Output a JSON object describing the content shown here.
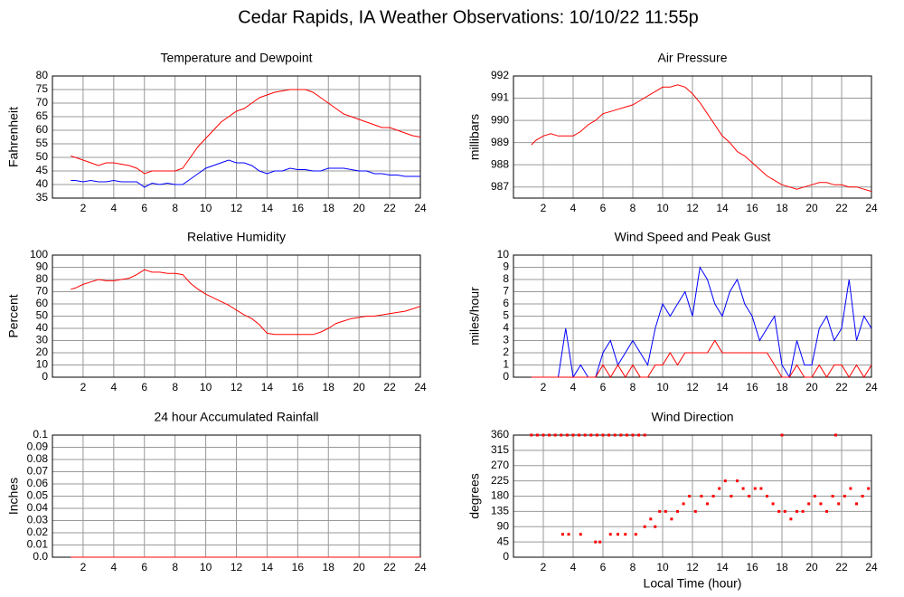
{
  "title": "Cedar Rapids, IA Weather Observations: 10/10/22 11:55p",
  "chart_data": [
    {
      "type": "line",
      "title": "Temperature and Dewpoint",
      "ylabel": "Fahrenheit",
      "x": [
        1.2,
        1.5,
        2,
        2.5,
        3,
        3.5,
        4,
        4.5,
        5,
        5.5,
        6,
        6.5,
        7,
        7.5,
        8,
        8.5,
        9,
        9.5,
        10,
        10.5,
        11,
        11.5,
        12,
        12.5,
        13,
        13.5,
        14,
        14.5,
        15,
        15.5,
        16,
        16.5,
        17,
        17.5,
        18,
        18.5,
        19,
        19.5,
        20,
        20.5,
        21,
        21.5,
        22,
        22.5,
        23,
        23.5,
        24
      ],
      "series": [
        {
          "color": "#ff0000",
          "values": [
            50.5,
            50,
            49,
            48,
            47,
            48,
            48,
            47.5,
            47,
            46,
            44,
            45,
            45,
            45,
            45,
            46,
            50,
            54,
            57,
            60,
            63,
            65,
            67,
            68,
            70,
            72,
            73,
            74,
            74.5,
            75,
            75,
            75,
            74,
            72,
            70,
            68,
            66,
            65,
            64,
            63,
            62,
            61,
            61,
            60,
            59,
            58,
            57.5
          ]
        },
        {
          "color": "#0000ff",
          "values": [
            41.5,
            41.5,
            41,
            41.5,
            41,
            41,
            41.5,
            41,
            41,
            41,
            39,
            40.5,
            40,
            40.5,
            40,
            40,
            42,
            44,
            46,
            47,
            48,
            49,
            48,
            48,
            47,
            45,
            44,
            45,
            45,
            46,
            45.5,
            45.5,
            45,
            45,
            46,
            46,
            46,
            45.5,
            45,
            45,
            44,
            44,
            43.5,
            43.5,
            43,
            43,
            43
          ]
        }
      ],
      "xlim": [
        0,
        24
      ],
      "xticks": [
        2,
        4,
        6,
        8,
        10,
        12,
        14,
        16,
        18,
        20,
        22,
        24
      ],
      "ylim": [
        35,
        80
      ],
      "yticks": [
        35,
        40,
        45,
        50,
        55,
        60,
        65,
        70,
        75,
        80
      ],
      "grid": true
    },
    {
      "type": "line",
      "title": "Air Pressure",
      "ylabel": "millibars",
      "x": [
        1.2,
        1.5,
        2,
        2.5,
        3,
        3.5,
        4,
        4.5,
        5,
        5.5,
        6,
        6.5,
        7,
        7.5,
        8,
        8.5,
        9,
        9.5,
        10,
        10.5,
        11,
        11.5,
        12,
        12.5,
        13,
        13.5,
        14,
        14.5,
        15,
        15.5,
        16,
        16.5,
        17,
        17.5,
        18,
        18.5,
        19,
        19.5,
        20,
        20.5,
        21,
        21.5,
        22,
        22.5,
        23,
        23.5,
        24
      ],
      "series": [
        {
          "color": "#ff0000",
          "values": [
            988.9,
            989.1,
            989.3,
            989.4,
            989.3,
            989.3,
            989.3,
            989.5,
            989.8,
            990.0,
            990.3,
            990.4,
            990.5,
            990.6,
            990.7,
            990.9,
            991.1,
            991.3,
            991.5,
            991.5,
            991.6,
            991.5,
            991.2,
            990.8,
            990.3,
            989.8,
            989.3,
            989.0,
            988.6,
            988.4,
            988.1,
            987.8,
            987.5,
            987.3,
            987.1,
            987.0,
            986.9,
            987.0,
            987.1,
            987.2,
            987.2,
            987.1,
            987.1,
            987.0,
            987.0,
            986.9,
            986.8
          ]
        }
      ],
      "xlim": [
        0,
        24
      ],
      "xticks": [
        2,
        4,
        6,
        8,
        10,
        12,
        14,
        16,
        18,
        20,
        22,
        24
      ],
      "ylim": [
        986.5,
        992
      ],
      "yticks": [
        987,
        988,
        989,
        990,
        991,
        992
      ],
      "grid": true
    },
    {
      "type": "line",
      "title": "Relative Humidity",
      "ylabel": "Percent",
      "x": [
        1.2,
        1.5,
        2,
        2.5,
        3,
        3.5,
        4,
        4.5,
        5,
        5.5,
        6,
        6.5,
        7,
        7.5,
        8,
        8.5,
        9,
        9.5,
        10,
        10.5,
        11,
        11.5,
        12,
        12.5,
        13,
        13.5,
        14,
        14.5,
        15,
        15.5,
        16,
        16.5,
        17,
        17.5,
        18,
        18.5,
        19,
        19.5,
        20,
        20.5,
        21,
        21.5,
        22,
        22.5,
        23,
        23.5,
        24
      ],
      "series": [
        {
          "color": "#ff0000",
          "values": [
            72,
            73,
            76,
            78,
            80,
            79,
            79,
            80,
            81,
            84,
            88,
            86,
            86,
            85,
            85,
            84,
            77,
            72,
            68,
            65,
            62,
            59,
            55,
            51,
            48,
            43,
            36,
            35,
            35,
            35,
            35,
            35,
            35,
            37,
            40,
            44,
            46,
            48,
            49,
            50,
            50,
            51,
            52,
            53,
            54,
            56,
            58
          ]
        }
      ],
      "xlim": [
        0,
        24
      ],
      "xticks": [
        2,
        4,
        6,
        8,
        10,
        12,
        14,
        16,
        18,
        20,
        22,
        24
      ],
      "ylim": [
        0,
        100
      ],
      "yticks": [
        0,
        10,
        20,
        30,
        40,
        50,
        60,
        70,
        80,
        90,
        100
      ],
      "grid": true
    },
    {
      "type": "line",
      "title": "Wind Speed and Peak Gust",
      "ylabel": "miles/hour",
      "x": [
        1.2,
        1.5,
        2,
        2.5,
        3,
        3.5,
        4,
        4.5,
        5,
        5.5,
        6,
        6.5,
        7,
        7.5,
        8,
        8.5,
        9,
        9.5,
        10,
        10.5,
        11,
        11.5,
        12,
        12.5,
        13,
        13.5,
        14,
        14.5,
        15,
        15.5,
        16,
        16.5,
        17,
        17.5,
        18,
        18.5,
        19,
        19.5,
        20,
        20.5,
        21,
        21.5,
        22,
        22.5,
        23,
        23.5,
        24
      ],
      "series": [
        {
          "color": "#0000ff",
          "values": [
            0,
            0,
            0,
            0,
            0,
            4,
            0,
            1,
            0,
            0,
            2,
            3,
            1,
            2,
            3,
            2,
            1,
            4,
            6,
            5,
            6,
            7,
            5,
            9,
            8,
            6,
            5,
            7,
            8,
            6,
            5,
            3,
            4,
            5,
            1,
            0,
            3,
            1,
            1,
            4,
            5,
            3,
            4,
            8,
            3,
            5,
            4
          ]
        },
        {
          "color": "#ff0000",
          "values": [
            0,
            0,
            0,
            0,
            0,
            0,
            0,
            0,
            0,
            0,
            1,
            0,
            1,
            0,
            1,
            0,
            0,
            1,
            1,
            2,
            1,
            2,
            2,
            2,
            2,
            3,
            2,
            2,
            2,
            2,
            2,
            2,
            2,
            1,
            0,
            0,
            1,
            0,
            0,
            1,
            0,
            1,
            1,
            0,
            1,
            0,
            1
          ]
        }
      ],
      "xlim": [
        0,
        24
      ],
      "xticks": [
        2,
        4,
        6,
        8,
        10,
        12,
        14,
        16,
        18,
        20,
        22,
        24
      ],
      "ylim": [
        0,
        10
      ],
      "yticks": [
        0,
        1,
        2,
        3,
        4,
        5,
        6,
        7,
        8,
        9,
        10
      ],
      "grid": true
    },
    {
      "type": "line",
      "title": "24 hour Accumulated Rainfall",
      "ylabel": "Inches",
      "x": [
        1.2,
        24
      ],
      "series": [
        {
          "color": "#ff0000",
          "values": [
            0,
            0
          ]
        }
      ],
      "xlim": [
        0,
        24
      ],
      "xticks": [
        2,
        4,
        6,
        8,
        10,
        12,
        14,
        16,
        18,
        20,
        22,
        24
      ],
      "ylim": [
        0,
        0.1
      ],
      "yticks": [
        {
          "value": 0,
          "label": "0.0"
        },
        0.01,
        0.02,
        0.03,
        0.04,
        0.05,
        0.06,
        0.07,
        0.08,
        0.09,
        0.1
      ],
      "grid": true
    },
    {
      "type": "scatter",
      "title": "Wind Direction",
      "ylabel": "degrees",
      "xlabel": "Local Time (hour)",
      "x": [
        1.2,
        1.6,
        2,
        2.4,
        2.8,
        3.2,
        3.6,
        4,
        4.4,
        4.8,
        5.2,
        5.6,
        6,
        6.4,
        6.8,
        7.2,
        7.6,
        8,
        8.4,
        8.8,
        3.3,
        3.7,
        4.5,
        5.5,
        5.8,
        6.5,
        7,
        7.5,
        8.2,
        8.8,
        9.2,
        9.5,
        9.8,
        10.2,
        10.6,
        11,
        11.4,
        11.8,
        12.2,
        12.6,
        13,
        13.4,
        13.8,
        14.2,
        14.6,
        15,
        15.4,
        15.8,
        16.2,
        16.6,
        17,
        17.4,
        17.8,
        18.2,
        18.6,
        19,
        19.4,
        19.8,
        20.2,
        20.6,
        21,
        21.4,
        21.8,
        22.2,
        22.6,
        23,
        23.4,
        23.8,
        18,
        21.6
      ],
      "series": [
        {
          "color": "#ff0000",
          "values": [
            360,
            360,
            360,
            360,
            360,
            360,
            360,
            360,
            360,
            360,
            360,
            360,
            360,
            360,
            360,
            360,
            360,
            360,
            360,
            360,
            67.5,
            67.5,
            67.5,
            45,
            45,
            67.5,
            67.5,
            67.5,
            67.5,
            90,
            112.5,
            90,
            135,
            135,
            112.5,
            135,
            157.5,
            180,
            135,
            180,
            157.5,
            180,
            202.5,
            225,
            180,
            225,
            202.5,
            180,
            202.5,
            202.5,
            180,
            157.5,
            135,
            135,
            112.5,
            135,
            135,
            157.5,
            180,
            157.5,
            135,
            180,
            157.5,
            180,
            202.5,
            157.5,
            180,
            202.5,
            360,
            360
          ]
        }
      ],
      "xlim": [
        0,
        24
      ],
      "xticks": [
        2,
        4,
        6,
        8,
        10,
        12,
        14,
        16,
        18,
        20,
        22,
        24
      ],
      "ylim": [
        0,
        360
      ],
      "yticks": [
        0,
        45,
        90,
        135,
        180,
        225,
        270,
        315,
        360
      ],
      "grid": true
    }
  ]
}
